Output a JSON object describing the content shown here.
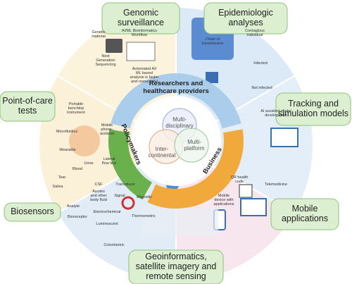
{
  "sections": [
    {
      "label": [
        "Genomic",
        "surveillance"
      ]
    },
    {
      "label": [
        "Epidemiologic",
        "analyses"
      ]
    },
    {
      "label": [
        "Tracking and",
        "simulation models"
      ]
    },
    {
      "label": [
        "Mobile",
        "applications"
      ]
    },
    {
      "label": [
        "Geoinformatics,",
        "satellite imagery and",
        "remote sensing"
      ]
    },
    {
      "label": [
        "Biosensors"
      ]
    },
    {
      "label": [
        "Point-of-care",
        "tests"
      ]
    }
  ],
  "ring": {
    "top": [
      "Researchers and",
      "healthcare providers"
    ],
    "right": "Business",
    "left": "Policymakers"
  },
  "center": [
    {
      "label": [
        "Multi-",
        "disciplinary"
      ]
    },
    {
      "label": [
        "Inter-",
        "continental"
      ]
    },
    {
      "label": [
        "Multi-",
        "platform"
      ]
    }
  ],
  "annotations": [
    {
      "lines": [
        "Genetic",
        "material"
      ]
    },
    {
      "lines": [
        "AI/ML Bioinformatics",
        "Workflow"
      ]
    },
    {
      "lines": [
        "Next",
        "Generation",
        "Sequencing"
      ]
    },
    {
      "lines": [
        "Automated AI/",
        "ML based",
        "analysis is faster",
        "and resourceful"
      ]
    },
    {
      "lines": [
        "Chain of",
        "transmission"
      ]
    },
    {
      "lines": [
        "Contagious",
        "individual"
      ]
    },
    {
      "lines": [
        "Infected"
      ]
    },
    {
      "lines": [
        "Not infected"
      ]
    },
    {
      "lines": [
        "AI assisted model",
        "development"
      ]
    },
    {
      "lines": [
        "Portable",
        "benchtop",
        "instrument"
      ]
    },
    {
      "lines": [
        "Mobile",
        "phone-",
        "assisted"
      ]
    },
    {
      "lines": [
        "Microfluidics"
      ]
    },
    {
      "lines": [
        "Wearable"
      ]
    },
    {
      "lines": [
        "Lateral",
        "flow test"
      ]
    },
    {
      "lines": [
        "Tear"
      ]
    },
    {
      "lines": [
        "Blood"
      ]
    },
    {
      "lines": [
        "Urine"
      ]
    },
    {
      "lines": [
        "Saliva"
      ]
    },
    {
      "lines": [
        "CSF"
      ]
    },
    {
      "lines": [
        "Ascites",
        "and other",
        "body fluid"
      ]
    },
    {
      "lines": [
        "Analyte"
      ]
    },
    {
      "lines": [
        "Bioreceptor"
      ]
    },
    {
      "lines": [
        "Transducer"
      ]
    },
    {
      "lines": [
        "Electrochemical"
      ]
    },
    {
      "lines": [
        "Signal"
      ]
    },
    {
      "lines": [
        "Magnetic"
      ]
    },
    {
      "lines": [
        "Luminescent"
      ]
    },
    {
      "lines": [
        "Thermometric"
      ]
    },
    {
      "lines": [
        "Colorimetric"
      ]
    },
    {
      "lines": [
        "QR health",
        "code"
      ]
    },
    {
      "lines": [
        "Telemedicine"
      ]
    },
    {
      "lines": [
        "Mobile",
        "device with",
        "applications"
      ]
    }
  ]
}
